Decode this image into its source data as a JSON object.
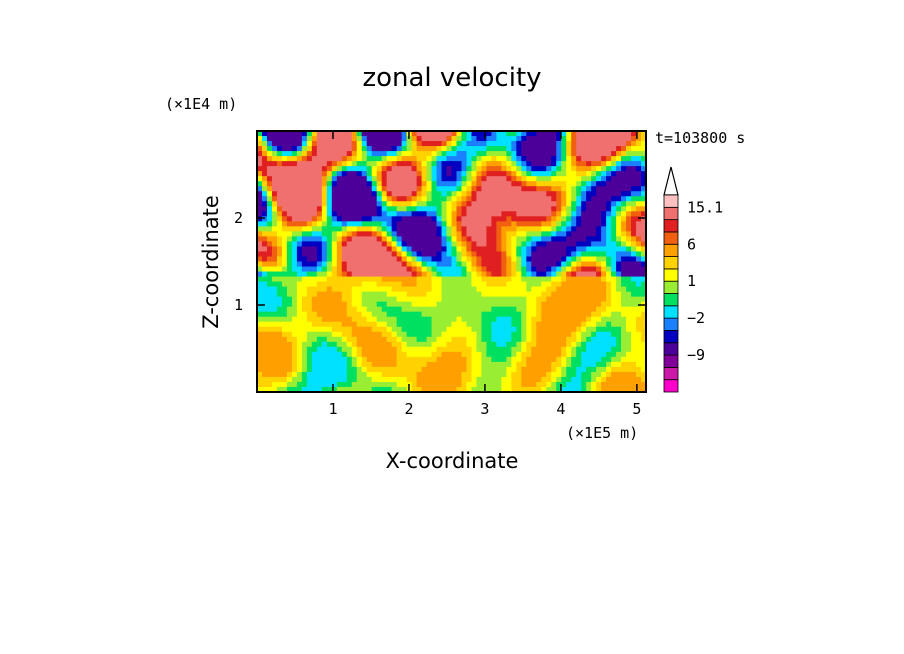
{
  "chart_data": {
    "type": "heatmap",
    "title": "zonal velocity",
    "xlabel": "X-coordinate",
    "ylabel": "Z-coordinate",
    "x_unit": "(×1E5 m)",
    "y_unit": "(×1E4 m)",
    "time_label": "t=103800 s",
    "xlim": [
      0,
      5.12
    ],
    "ylim": [
      0,
      3.0
    ],
    "x_ticks": [
      1,
      2,
      3,
      4,
      5
    ],
    "y_ticks": [
      1,
      2
    ],
    "colorbar": {
      "levels": [
        -15,
        -12,
        -9,
        -6,
        -4,
        -2,
        -1,
        0,
        1,
        2,
        4,
        6,
        9,
        12,
        15.1
      ],
      "labels": [
        {
          "text": "15.1",
          "value": 15.1
        },
        {
          "text": "6",
          "value": 6
        },
        {
          "text": "1",
          "value": 1
        },
        {
          "text": "−2",
          "value": -2
        },
        {
          "text": "−9",
          "value": -9
        }
      ],
      "colors": [
        "#ff00cc",
        "#cc1aa8",
        "#800099",
        "#4d0099",
        "#0000c0",
        "#1a80ff",
        "#00e0ff",
        "#00e060",
        "#99ee33",
        "#ffff00",
        "#ffd200",
        "#ffa000",
        "#f06010",
        "#e02020",
        "#f07070",
        "#ffc0c0"
      ]
    }
  }
}
